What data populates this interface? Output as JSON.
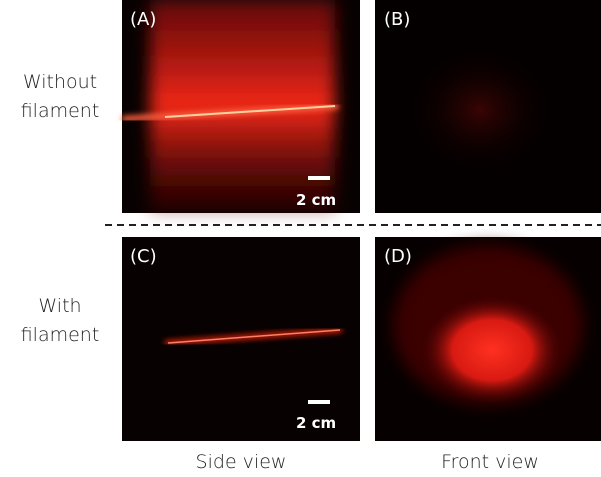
{
  "rows": [
    {
      "label_lines": [
        "Without",
        "filament"
      ]
    },
    {
      "label_lines": [
        "With",
        "filament"
      ]
    }
  ],
  "panels": [
    {
      "label": "(A)",
      "scale_bar": "2 cm"
    },
    {
      "label": "(B)"
    },
    {
      "label": "(C)",
      "scale_bar": "2 cm"
    },
    {
      "label": "(D)"
    }
  ],
  "columns": [
    "Side view",
    "Front view"
  ]
}
